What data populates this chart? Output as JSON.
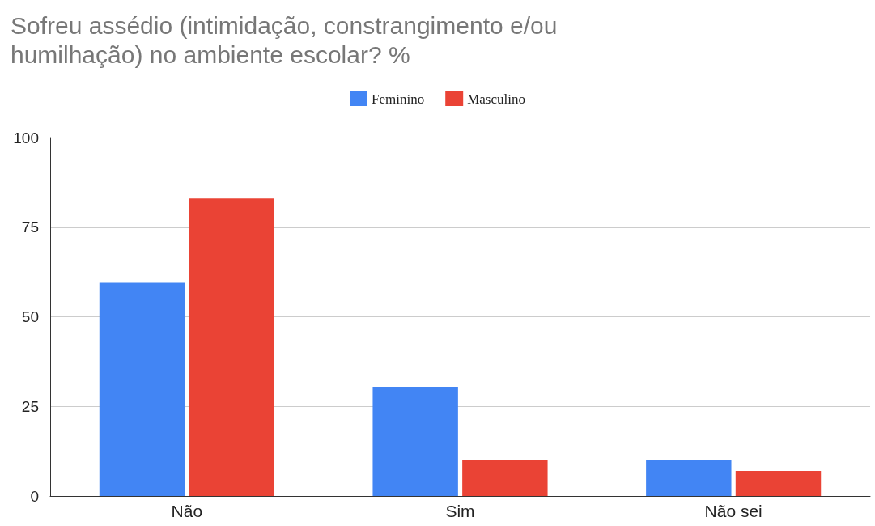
{
  "chart_data": {
    "type": "bar",
    "title": "Sofreu assédio (intimidação, constrangimento e/ou\nhumilhação) no ambiente escolar? %",
    "categories": [
      "Não",
      "Sim",
      "Não sei"
    ],
    "series": [
      {
        "name": "Feminino",
        "color": "#4285f4",
        "values": [
          59.5,
          30.5,
          10
        ]
      },
      {
        "name": "Masculino",
        "color": "#ea4335",
        "values": [
          83,
          10,
          7
        ]
      }
    ],
    "ylim": [
      0,
      100
    ],
    "yticks": [
      0,
      25,
      50,
      75,
      100
    ],
    "grid": "y",
    "legend": "top"
  }
}
